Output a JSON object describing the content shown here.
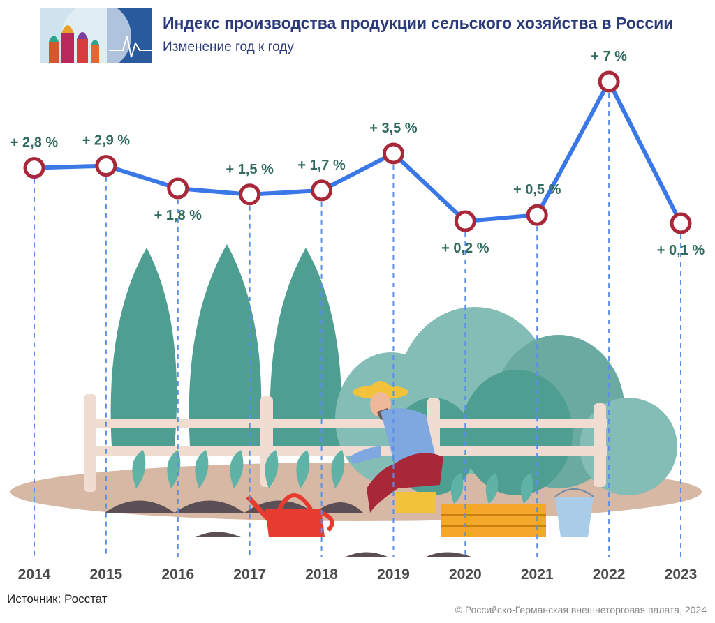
{
  "header": {
    "title": "Индекс производства продукции сельского хозяйства в России",
    "subtitle": "Изменение год к году"
  },
  "footer": {
    "source": "Источник: Росстат",
    "copyright": "© Российско-Германская внешнеторговая палата, 2024"
  },
  "colors": {
    "line": "#3b78e7",
    "marker": "#a8283a",
    "label": "#2f6b5e",
    "title": "#2b3a78",
    "foliage": "#4f9e92"
  },
  "icons": [
    "logo-cathedral-icon",
    "farmer-illustration"
  ],
  "chart_data": {
    "type": "line",
    "title": "Индекс производства продукции сельского хозяйства в России",
    "subtitle": "Изменение год к году",
    "xlabel": "",
    "ylabel": "",
    "categories": [
      "2014",
      "2015",
      "2016",
      "2017",
      "2018",
      "2019",
      "2020",
      "2021",
      "2022",
      "2023"
    ],
    "series": [
      {
        "values": [
          2.8,
          2.9,
          1.8,
          1.5,
          1.7,
          3.5,
          0.2,
          0.5,
          7,
          0.1
        ],
        "labels": [
          "+ 2,8 %",
          "+ 2,9 %",
          "+ 1,8 %",
          "+ 1,5 %",
          "+ 1,7 %",
          "+ 3,5 %",
          "+ 0,2 %",
          "+ 0,5 %",
          "+ 7 %",
          "+ 0,1 %"
        ]
      }
    ],
    "grid": false,
    "legend": "none"
  }
}
